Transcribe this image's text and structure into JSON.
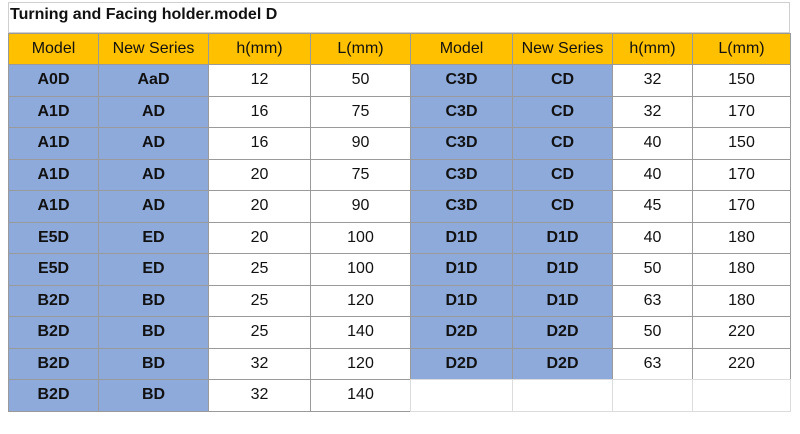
{
  "title": "Turning and Facing holder.model D",
  "headers": [
    "Model",
    "New Series",
    "h(mm)",
    "L(mm)",
    "Model",
    "New Series",
    "h(mm)",
    "L(mm)"
  ],
  "left": {
    "rows": [
      [
        "A0D",
        "AaD",
        12,
        50
      ],
      [
        "A1D",
        "AD",
        16,
        75
      ],
      [
        "A1D",
        "AD",
        16,
        90
      ],
      [
        "A1D",
        "AD",
        20,
        75
      ],
      [
        "A1D",
        "AD",
        20,
        90
      ],
      [
        "E5D",
        "ED",
        20,
        100
      ],
      [
        "E5D",
        "ED",
        25,
        100
      ],
      [
        "B2D",
        "BD",
        25,
        120
      ],
      [
        "B2D",
        "BD",
        25,
        140
      ],
      [
        "B2D",
        "BD",
        32,
        120
      ],
      [
        "B2D",
        "BD",
        32,
        140
      ]
    ]
  },
  "right": {
    "rows": [
      [
        "C3D",
        "CD",
        32,
        150
      ],
      [
        "C3D",
        "CD",
        32,
        170
      ],
      [
        "C3D",
        "CD",
        40,
        150
      ],
      [
        "C3D",
        "CD",
        40,
        170
      ],
      [
        "C3D",
        "CD",
        45,
        170
      ],
      [
        "D1D",
        "D1D",
        40,
        180
      ],
      [
        "D1D",
        "D1D",
        50,
        180
      ],
      [
        "D1D",
        "D1D",
        63,
        180
      ],
      [
        "D2D",
        "D2D",
        50,
        220
      ],
      [
        "D2D",
        "D2D",
        63,
        220
      ]
    ]
  }
}
